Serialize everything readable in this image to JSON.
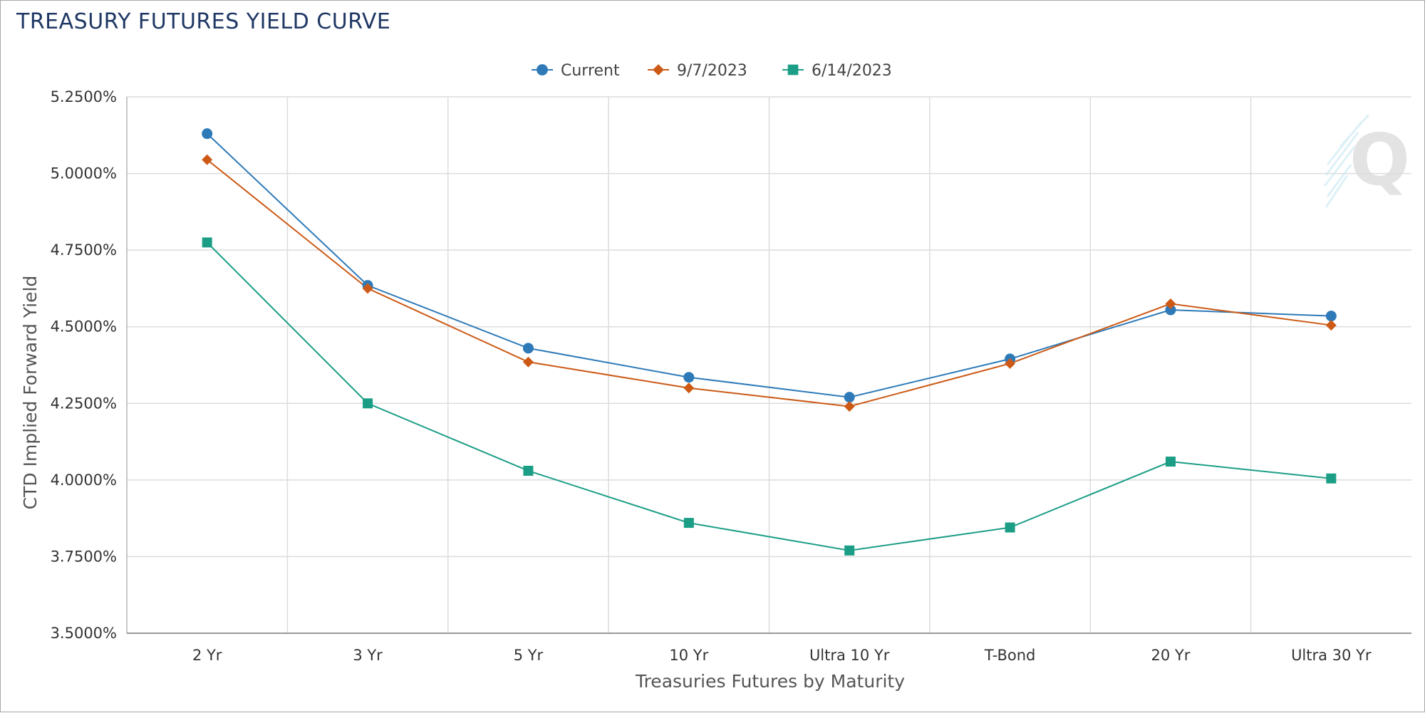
{
  "chart_data": {
    "type": "line",
    "title": "TREASURY FUTURES YIELD CURVE",
    "xlabel": "Treasuries Futures by Maturity",
    "ylabel": "CTD Implied Forward Yield",
    "categories": [
      "2 Yr",
      "3 Yr",
      "5 Yr",
      "10 Yr",
      "Ultra 10 Yr",
      "T-Bond",
      "20 Yr",
      "Ultra 30 Yr"
    ],
    "ylim": [
      3.5,
      5.25
    ],
    "yticks": [
      "5.2500%",
      "5.0000%",
      "4.7500%",
      "4.5000%",
      "4.2500%",
      "4.0000%",
      "3.7500%",
      "3.5000%"
    ],
    "ytick_values": [
      5.25,
      5.0,
      4.75,
      4.5,
      4.25,
      4.0,
      3.75,
      3.5
    ],
    "grid": true,
    "legend_position": "top-center",
    "series": [
      {
        "name": "Current",
        "marker": "circle",
        "color": "#2e7ab8",
        "values": [
          5.13,
          4.635,
          4.43,
          4.335,
          4.27,
          4.395,
          4.555,
          4.535
        ]
      },
      {
        "name": "9/7/2023",
        "marker": "diamond",
        "color": "#cc5a16",
        "values": [
          5.045,
          4.625,
          4.385,
          4.3,
          4.24,
          4.38,
          4.575,
          4.505
        ]
      },
      {
        "name": "6/14/2023",
        "marker": "square",
        "color": "#1c9e86",
        "values": [
          4.775,
          4.25,
          4.03,
          3.86,
          3.77,
          3.845,
          4.06,
          4.005
        ]
      }
    ]
  },
  "watermark": {
    "letter": "Q"
  }
}
